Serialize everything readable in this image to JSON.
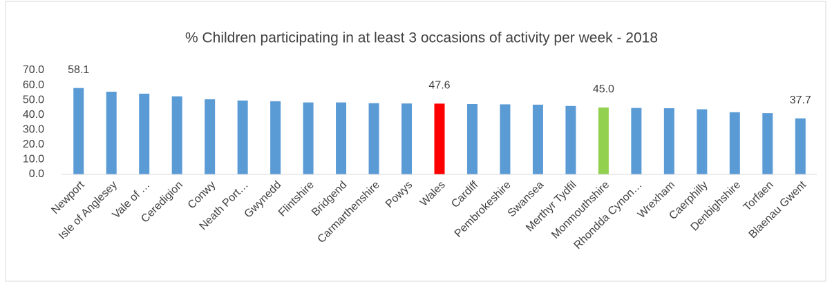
{
  "chart_data": {
    "type": "bar",
    "title": "% Children participating in at least 3 occasions of activity per week - 2018",
    "categories": [
      "Newport",
      "Isle of Anglesey",
      "Vale of …",
      "Ceredigion",
      "Conwy",
      "Neath Port…",
      "Gwynedd",
      "Flintshire",
      "Bridgend",
      "Carmarthenshire",
      "Powys",
      "Wales",
      "Cardiff",
      "Pembrokeshire",
      "Swansea",
      "Merthyr Tydfil",
      "Monmouthshire",
      "Rhondda Cynon…",
      "Wrexham",
      "Caerphilly",
      "Denbighshire",
      "Torfaen",
      "Blaenau Gwent"
    ],
    "values": [
      58.1,
      55.6,
      54.3,
      52.5,
      50.5,
      49.7,
      49.2,
      48.4,
      48.4,
      47.9,
      47.7,
      47.6,
      47.3,
      47.1,
      46.9,
      46.0,
      45.0,
      44.7,
      44.5,
      43.8,
      41.8,
      41.2,
      37.7
    ],
    "value_labels": [
      "58.1",
      null,
      null,
      null,
      null,
      null,
      null,
      null,
      null,
      null,
      null,
      "47.6",
      null,
      null,
      null,
      null,
      "45.0",
      null,
      null,
      null,
      null,
      null,
      "37.7"
    ],
    "color": "#5b9bd5",
    "colors": [
      "#5b9bd5",
      "#5b9bd5",
      "#5b9bd5",
      "#5b9bd5",
      "#5b9bd5",
      "#5b9bd5",
      "#5b9bd5",
      "#5b9bd5",
      "#5b9bd5",
      "#5b9bd5",
      "#5b9bd5",
      "#ff0000",
      "#5b9bd5",
      "#5b9bd5",
      "#5b9bd5",
      "#5b9bd5",
      "#92d050",
      "#5b9bd5",
      "#5b9bd5",
      "#5b9bd5",
      "#5b9bd5",
      "#5b9bd5",
      "#5b9bd5"
    ],
    "ylim": [
      0,
      70
    ],
    "yticks": [
      {
        "value": 0,
        "label": "0.0"
      },
      {
        "value": 10,
        "label": "10.0"
      },
      {
        "value": 20,
        "label": "20.0"
      },
      {
        "value": 30,
        "label": "30.0"
      },
      {
        "value": 40,
        "label": "40.0"
      },
      {
        "value": 50,
        "label": "50.0"
      },
      {
        "value": 60,
        "label": "60.0"
      },
      {
        "value": 70,
        "label": "70.0"
      }
    ],
    "grid": false
  }
}
